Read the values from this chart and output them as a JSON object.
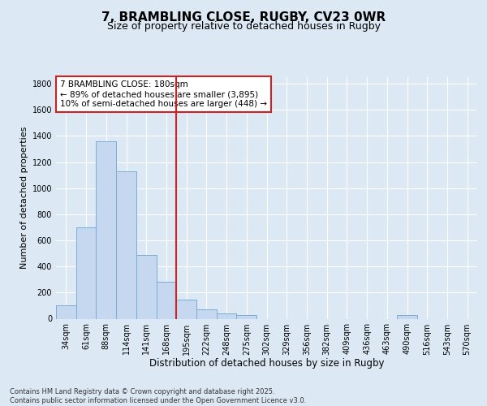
{
  "title": "7, BRAMBLING CLOSE, RUGBY, CV23 0WR",
  "subtitle": "Size of property relative to detached houses in Rugby",
  "xlabel": "Distribution of detached houses by size in Rugby",
  "ylabel": "Number of detached properties",
  "bin_labels": [
    "34sqm",
    "61sqm",
    "88sqm",
    "114sqm",
    "141sqm",
    "168sqm",
    "195sqm",
    "222sqm",
    "248sqm",
    "275sqm",
    "302sqm",
    "329sqm",
    "356sqm",
    "382sqm",
    "409sqm",
    "436sqm",
    "463sqm",
    "490sqm",
    "516sqm",
    "543sqm",
    "570sqm"
  ],
  "bar_values": [
    100,
    700,
    1360,
    1130,
    490,
    280,
    145,
    70,
    40,
    30,
    0,
    0,
    0,
    0,
    0,
    0,
    0,
    25,
    0,
    0,
    0
  ],
  "bar_color": "#c5d8ef",
  "bar_edge_color": "#7aadd4",
  "vline_x": 6,
  "vline_color": "#cc2222",
  "annotation_text": "7 BRAMBLING CLOSE: 180sqm\n← 89% of detached houses are smaller (3,895)\n10% of semi-detached houses are larger (448) →",
  "annotation_box_color": "#ffffff",
  "annotation_box_edge": "#cc2222",
  "ylim": [
    0,
    1850
  ],
  "yticks": [
    0,
    200,
    400,
    600,
    800,
    1000,
    1200,
    1400,
    1600,
    1800
  ],
  "background_color": "#dce9f5",
  "plot_bg_color": "#dce9f5",
  "footer": "Contains HM Land Registry data © Crown copyright and database right 2025.\nContains public sector information licensed under the Open Government Licence v3.0.",
  "title_fontsize": 11,
  "subtitle_fontsize": 9,
  "xlabel_fontsize": 8.5,
  "ylabel_fontsize": 8,
  "tick_fontsize": 7,
  "annotation_fontsize": 7.5,
  "footer_fontsize": 6
}
